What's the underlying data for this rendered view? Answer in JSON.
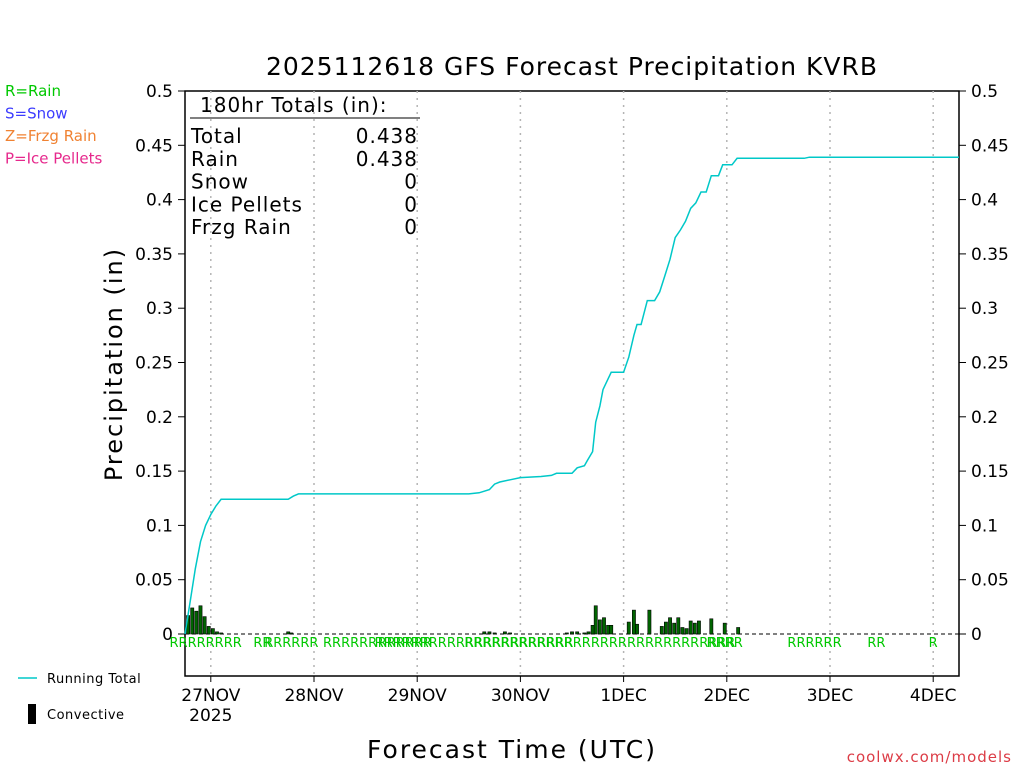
{
  "chart_data": {
    "type": "line",
    "title": "2025112618 GFS Forecast Precipitation KVRB",
    "xlabel": "Forecast Time (UTC)",
    "ylabel": "Precipitation (in)",
    "ylim": [
      0,
      0.5
    ],
    "yticks": [
      "0",
      "0.05",
      "0.1",
      "0.15",
      "0.2",
      "0.25",
      "0.3",
      "0.35",
      "0.4",
      "0.45",
      "0.5"
    ],
    "x_unit": "days since 27NOV 00Z",
    "xlim": [
      -0.25,
      7.25
    ],
    "xticks": [
      {
        "x": 0,
        "label": "27NOV",
        "sub": "2025"
      },
      {
        "x": 1,
        "label": "28NOV",
        "sub": ""
      },
      {
        "x": 2,
        "label": "29NOV",
        "sub": ""
      },
      {
        "x": 3,
        "label": "30NOV",
        "sub": ""
      },
      {
        "x": 4,
        "label": "1DEC",
        "sub": ""
      },
      {
        "x": 5,
        "label": "2DEC",
        "sub": ""
      },
      {
        "x": 6,
        "label": "3DEC",
        "sub": ""
      },
      {
        "x": 7,
        "label": "4DEC",
        "sub": ""
      }
    ],
    "grid": "vertical dotted at each day",
    "legend_position": "bottom-left",
    "series": [
      {
        "name": "Running Total",
        "color": "#00c8c8",
        "points": [
          [
            -0.25,
            0.0
          ],
          [
            -0.2,
            0.03
          ],
          [
            -0.15,
            0.06
          ],
          [
            -0.1,
            0.085
          ],
          [
            -0.05,
            0.1
          ],
          [
            0,
            0.11
          ],
          [
            0.05,
            0.118
          ],
          [
            0.1,
            0.124
          ],
          [
            0.25,
            0.124
          ],
          [
            0.5,
            0.124
          ],
          [
            0.75,
            0.124
          ],
          [
            0.8,
            0.127
          ],
          [
            0.85,
            0.129
          ],
          [
            1.0,
            0.129
          ],
          [
            1.5,
            0.129
          ],
          [
            2.0,
            0.129
          ],
          [
            2.5,
            0.129
          ],
          [
            2.6,
            0.13
          ],
          [
            2.7,
            0.133
          ],
          [
            2.75,
            0.138
          ],
          [
            2.8,
            0.14
          ],
          [
            2.9,
            0.142
          ],
          [
            3.0,
            0.144
          ],
          [
            3.2,
            0.145
          ],
          [
            3.3,
            0.146
          ],
          [
            3.35,
            0.148
          ],
          [
            3.5,
            0.148
          ],
          [
            3.55,
            0.153
          ],
          [
            3.62,
            0.155
          ],
          [
            3.65,
            0.16
          ],
          [
            3.7,
            0.168
          ],
          [
            3.73,
            0.195
          ],
          [
            3.77,
            0.21
          ],
          [
            3.8,
            0.225
          ],
          [
            3.85,
            0.235
          ],
          [
            3.88,
            0.241
          ],
          [
            4.0,
            0.241
          ],
          [
            4.05,
            0.255
          ],
          [
            4.1,
            0.275
          ],
          [
            4.13,
            0.285
          ],
          [
            4.17,
            0.285
          ],
          [
            4.23,
            0.307
          ],
          [
            4.3,
            0.307
          ],
          [
            4.35,
            0.315
          ],
          [
            4.4,
            0.33
          ],
          [
            4.45,
            0.345
          ],
          [
            4.5,
            0.365
          ],
          [
            4.55,
            0.372
          ],
          [
            4.6,
            0.38
          ],
          [
            4.65,
            0.392
          ],
          [
            4.7,
            0.397
          ],
          [
            4.75,
            0.407
          ],
          [
            4.8,
            0.407
          ],
          [
            4.85,
            0.422
          ],
          [
            4.92,
            0.422
          ],
          [
            4.96,
            0.432
          ],
          [
            5.05,
            0.432
          ],
          [
            5.1,
            0.438
          ],
          [
            5.75,
            0.438
          ],
          [
            5.8,
            0.439
          ],
          [
            7.25,
            0.439
          ]
        ]
      }
    ],
    "convective_bars": [
      {
        "x": -0.22,
        "v": 0.017
      },
      {
        "x": -0.18,
        "v": 0.024
      },
      {
        "x": -0.14,
        "v": 0.021
      },
      {
        "x": -0.1,
        "v": 0.026
      },
      {
        "x": -0.06,
        "v": 0.016
      },
      {
        "x": -0.02,
        "v": 0.007
      },
      {
        "x": 0.02,
        "v": 0.005
      },
      {
        "x": 0.06,
        "v": 0.002
      },
      {
        "x": 0.1,
        "v": 0.001
      },
      {
        "x": 0.75,
        "v": 0.002
      },
      {
        "x": 0.78,
        "v": 0.001
      },
      {
        "x": 2.65,
        "v": 0.002
      },
      {
        "x": 2.7,
        "v": 0.002
      },
      {
        "x": 2.75,
        "v": 0.001
      },
      {
        "x": 2.85,
        "v": 0.002
      },
      {
        "x": 2.9,
        "v": 0.001
      },
      {
        "x": 3.45,
        "v": 0.001
      },
      {
        "x": 3.5,
        "v": 0.002
      },
      {
        "x": 3.55,
        "v": 0.002
      },
      {
        "x": 3.62,
        "v": 0.001
      },
      {
        "x": 3.66,
        "v": 0.002
      },
      {
        "x": 3.7,
        "v": 0.008
      },
      {
        "x": 3.73,
        "v": 0.026
      },
      {
        "x": 3.77,
        "v": 0.013
      },
      {
        "x": 3.81,
        "v": 0.015
      },
      {
        "x": 3.85,
        "v": 0.008
      },
      {
        "x": 3.88,
        "v": 0.008
      },
      {
        "x": 4.05,
        "v": 0.011
      },
      {
        "x": 4.1,
        "v": 0.022
      },
      {
        "x": 4.13,
        "v": 0.009
      },
      {
        "x": 4.25,
        "v": 0.022
      },
      {
        "x": 4.37,
        "v": 0.007
      },
      {
        "x": 4.41,
        "v": 0.011
      },
      {
        "x": 4.45,
        "v": 0.015
      },
      {
        "x": 4.49,
        "v": 0.01
      },
      {
        "x": 4.53,
        "v": 0.015
      },
      {
        "x": 4.57,
        "v": 0.006
      },
      {
        "x": 4.61,
        "v": 0.005
      },
      {
        "x": 4.65,
        "v": 0.012
      },
      {
        "x": 4.69,
        "v": 0.01
      },
      {
        "x": 4.73,
        "v": 0.012
      },
      {
        "x": 4.85,
        "v": 0.014
      },
      {
        "x": 4.98,
        "v": 0.01
      },
      {
        "x": 5.11,
        "v": 0.006
      }
    ],
    "rain_markers": [
      {
        "x": -0.05,
        "label": "RRRRRRRR"
      },
      {
        "x": 0.5,
        "label": "RR"
      },
      {
        "x": 0.78,
        "label": "RRRRRR"
      },
      {
        "x": 1.35,
        "label": "RRRRRR"
      },
      {
        "x": 1.88,
        "label": "RRRRRR"
      },
      {
        "x": 2.55,
        "label": "RRRRRRRRRRRRRRRRRRRRRR"
      },
      {
        "x": 3.77,
        "label": "RRRRRRRRRRRRRRRRRRRRRRRRRRRRRR"
      },
      {
        "x": 4.98,
        "label": "RRRR"
      },
      {
        "x": 5.85,
        "label": "RRRRRR"
      },
      {
        "x": 6.45,
        "label": "RR"
      },
      {
        "x": 7.0,
        "label": "R"
      }
    ],
    "annotations": {
      "totals_header": "180hr Totals (in):",
      "totals": [
        {
          "label": "Total",
          "value": "0.438"
        },
        {
          "label": "Rain",
          "value": "0.438"
        },
        {
          "label": "Snow",
          "value": "0"
        },
        {
          "label": "Ice Pellets",
          "value": "0"
        },
        {
          "label": "Frzg Rain",
          "value": "0"
        }
      ]
    }
  },
  "type_legend": [
    {
      "text": "R=Rain",
      "color": "#00c800"
    },
    {
      "text": "S=Snow",
      "color": "#3c3cff"
    },
    {
      "text": "Z=Frzg Rain",
      "color": "#f08232"
    },
    {
      "text": "P=Ice Pellets",
      "color": "#e6288c"
    }
  ],
  "bottom_legend": [
    {
      "text": "Running Total",
      "kind": "line",
      "color": "#00c8c8"
    },
    {
      "text": "Convective",
      "kind": "bar",
      "color": "#000000"
    }
  ],
  "credit": "coolwx.com/models",
  "colors": {
    "running_total": "#00c8c8",
    "bar_fill": "#006400",
    "rain_marker": "#00c800",
    "credit": "#dc3c46"
  }
}
